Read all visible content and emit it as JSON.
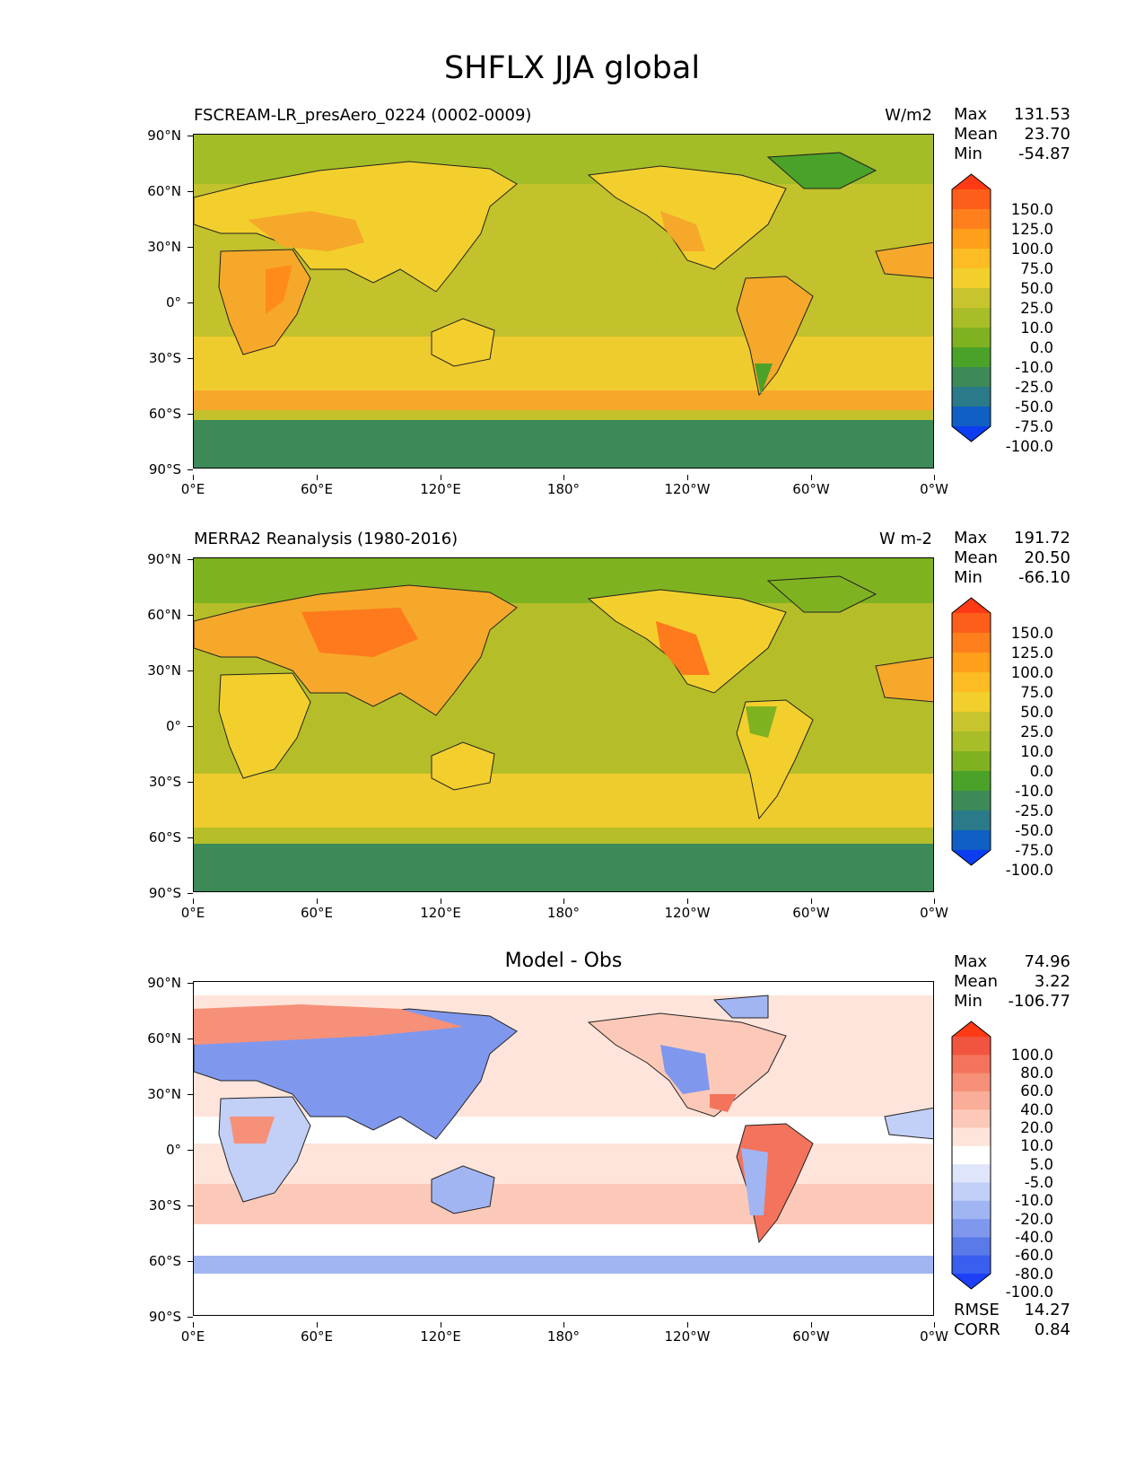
{
  "title": "SHFLX JJA global",
  "lat_ticks": [
    "90°N",
    "60°N",
    "30°N",
    "0°",
    "30°S",
    "60°S",
    "90°S"
  ],
  "lon_ticks": [
    "0°E",
    "60°E",
    "120°E",
    "180°",
    "120°W",
    "60°W",
    "0°W"
  ],
  "panels": [
    {
      "title_left": "FSCREAM-LR_presAero_0224 (0002-0009)",
      "title_right": "W/m2",
      "title_center": "",
      "stats": [
        [
          "Max",
          "131.53"
        ],
        [
          "Mean",
          "23.70"
        ],
        [
          "Min",
          "-54.87"
        ]
      ],
      "colorbar_labels": [
        "150.0",
        "125.0",
        "100.0",
        "75.0",
        "50.0",
        "25.0",
        "10.0",
        "0.0",
        "-10.0",
        "-25.0",
        "-50.0",
        "-75.0",
        "-100.0"
      ],
      "colorbar_colors": [
        "#ff3a14",
        "#ff5e1a",
        "#ff7f1c",
        "#ff9f1a",
        "#fdbb24",
        "#f2cf2c",
        "#c8c42d",
        "#a9bd28",
        "#7fb221",
        "#4aa229",
        "#3b8a58",
        "#2a7a8a",
        "#0f5fc4",
        "#0c3df0"
      ],
      "metrics": []
    },
    {
      "title_left": "MERRA2 Reanalysis (1980-2016)",
      "title_right": "W m-2",
      "title_center": "",
      "stats": [
        [
          "Max",
          "191.72"
        ],
        [
          "Mean",
          "20.50"
        ],
        [
          "Min",
          "-66.10"
        ]
      ],
      "colorbar_labels": [
        "150.0",
        "125.0",
        "100.0",
        "75.0",
        "50.0",
        "25.0",
        "10.0",
        "0.0",
        "-10.0",
        "-25.0",
        "-50.0",
        "-75.0",
        "-100.0"
      ],
      "colorbar_colors": [
        "#ff3a14",
        "#ff5e1a",
        "#ff7f1c",
        "#ff9f1a",
        "#fdbb24",
        "#f2cf2c",
        "#c8c42d",
        "#a9bd28",
        "#7fb221",
        "#4aa229",
        "#3b8a58",
        "#2a7a8a",
        "#0f5fc4",
        "#0c3df0"
      ],
      "metrics": []
    },
    {
      "title_left": "",
      "title_right": "",
      "title_center": "Model - Obs",
      "stats": [
        [
          "Max",
          "74.96"
        ],
        [
          "Mean",
          "3.22"
        ],
        [
          "Min",
          "-106.77"
        ]
      ],
      "colorbar_labels": [
        "100.0",
        "80.0",
        "60.0",
        "40.0",
        "20.0",
        "10.0",
        "5.0",
        "-5.0",
        "-10.0",
        "-20.0",
        "-40.0",
        "-60.0",
        "-80.0",
        "-100.0"
      ],
      "colorbar_colors": [
        "#ff3a14",
        "#f1553f",
        "#f4735c",
        "#f79078",
        "#faad98",
        "#fcc9b8",
        "#fee4da",
        "#ffffff",
        "#dfe5fb",
        "#c2cff7",
        "#a2b5f3",
        "#7f98ee",
        "#5a7ae8",
        "#3a5ef0",
        "#1e3ff8"
      ],
      "metrics": [
        [
          "RMSE",
          "14.27"
        ],
        [
          "CORR",
          "0.84"
        ]
      ]
    }
  ],
  "map_colors": {
    "p1": {
      "ocean": "#c3c12c",
      "ocean_band": "#efcc2e",
      "arctic": "#a3bd27",
      "antarctica": "#3b8a58",
      "land_warm": "#f6a82a",
      "land_hot": "#ff8c1a",
      "land_mild": "#f2cf2c",
      "land_cool": "#7fb221",
      "polar_land": "#4aa229"
    },
    "p2": {
      "ocean": "#b5be29",
      "ocean_band": "#efcc2e",
      "arctic": "#7fb221",
      "antarctica": "#3b8a58",
      "land_warm": "#f6a82a",
      "land_hot": "#ff7a1c",
      "land_mild": "#f2cf2c",
      "land_cool": "#7fb221",
      "polar_land": "#4aa229"
    },
    "p3": {
      "ocean": "#fee4da",
      "ocean_band": "#fcc9b8",
      "arctic": "#ffffff",
      "antarctica": "#ffffff",
      "neg_band": "#a2b5f3",
      "land_blue": "#7f98ee",
      "land_lightblue": "#c2cff7",
      "land_red": "#f4735c",
      "land_pink": "#f79078"
    }
  }
}
